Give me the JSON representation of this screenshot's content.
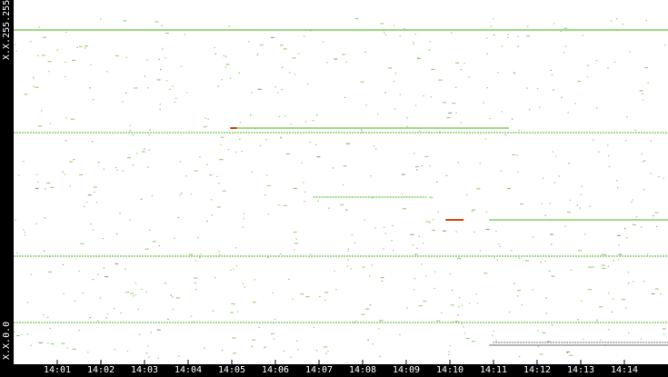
{
  "chart_data": {
    "type": "scatter",
    "title": "",
    "xlabel": "",
    "ylabel": "",
    "y_labels": {
      "top": "X.X.255.255",
      "bottom": "X.X.0.0"
    },
    "x_ticks": [
      "14:01",
      "14:02",
      "14:03",
      "14:04",
      "14:05",
      "14:06",
      "14:07",
      "14:08",
      "14:09",
      "14:10",
      "14:11",
      "14:12",
      "14:13",
      "14:14"
    ],
    "xlim": [
      "14:00:00",
      "14:15:00"
    ],
    "ylim": [
      0,
      65535
    ],
    "grid": false,
    "colors": {
      "normal": "#6cc644",
      "alert": "#e04010",
      "other": "#8a8a8a",
      "axis_bg": "#000000",
      "axis_text": "#ffffff"
    },
    "segments": [
      {
        "y": 60128,
        "start": "14:00:00",
        "end": "14:15:00",
        "color": "normal",
        "style": "solid"
      },
      {
        "y": 42435,
        "start": "14:04:58",
        "end": "14:11:21",
        "color": "normal",
        "style": "solid"
      },
      {
        "y": 42435,
        "start": "14:04:58",
        "end": "14:05:07",
        "color": "alert",
        "style": "solid"
      },
      {
        "y": 41616,
        "start": "14:00:00",
        "end": "14:15:00",
        "color": "normal",
        "style": "dotted"
      },
      {
        "y": 29982,
        "start": "14:06:52",
        "end": "14:09:28",
        "color": "normal",
        "style": "dotted"
      },
      {
        "y": 25886,
        "start": "14:09:54",
        "end": "14:10:19",
        "color": "alert",
        "style": "solid"
      },
      {
        "y": 25886,
        "start": "14:10:54",
        "end": "14:15:00",
        "color": "normal",
        "style": "solid"
      },
      {
        "y": 19333,
        "start": "14:00:00",
        "end": "14:15:00",
        "color": "normal",
        "style": "dotted"
      },
      {
        "y": 7373,
        "start": "14:00:00",
        "end": "14:15:00",
        "color": "normal",
        "style": "dotted"
      },
      {
        "y": 3769,
        "start": "14:10:59",
        "end": "14:15:00",
        "color": "other",
        "style": "dotted"
      },
      {
        "y": 3277,
        "start": "14:10:54",
        "end": "14:15:00",
        "color": "other",
        "style": "solid"
      }
    ]
  }
}
